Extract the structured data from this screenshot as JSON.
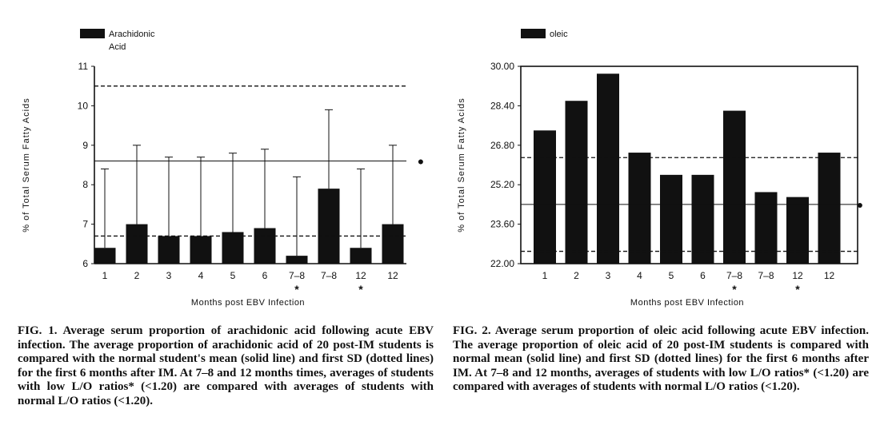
{
  "chart_data": [
    {
      "type": "bar",
      "legend_label_line1": "Arachidonic",
      "legend_label_line2": "Acid",
      "ylabel": "% of Total Serum Fatty Acids",
      "xlabel": "Months post EBV Infection",
      "ylim": [
        6,
        11
      ],
      "yticks": [
        "6",
        "7",
        "8",
        "9",
        "10",
        "11"
      ],
      "ytick_values": [
        6,
        7,
        8,
        9,
        10,
        11
      ],
      "categories": [
        "1",
        "2",
        "3",
        "4",
        "5",
        "6",
        "7–8",
        "7–8",
        "12",
        "12"
      ],
      "starred": [
        false,
        false,
        false,
        false,
        false,
        false,
        true,
        false,
        true,
        false
      ],
      "star_symbol": "*",
      "values": [
        6.4,
        7.0,
        6.7,
        6.7,
        6.8,
        6.9,
        6.2,
        7.9,
        6.4,
        7.0
      ],
      "error_upper": [
        8.4,
        9.0,
        8.7,
        8.7,
        8.8,
        8.9,
        8.2,
        9.9,
        8.4,
        9.0
      ],
      "mean_line": 8.6,
      "sd_lines": [
        6.7,
        10.5
      ],
      "marker": "●"
    },
    {
      "type": "bar",
      "legend_label_line1": "oleic",
      "legend_label_line2": "",
      "ylabel": "% of Total Serum Fatty Acids",
      "xlabel": "Months post EBV Infection",
      "ylim": [
        22.0,
        30.0
      ],
      "yticks": [
        "22.00",
        "23.60",
        "25.20",
        "26.80",
        "28.40",
        "30.00"
      ],
      "ytick_values": [
        22.0,
        23.6,
        25.2,
        26.8,
        28.4,
        30.0
      ],
      "categories": [
        "1",
        "2",
        "3",
        "4",
        "5",
        "6",
        "7–8",
        "7–8",
        "12",
        "12"
      ],
      "starred": [
        false,
        false,
        false,
        false,
        false,
        false,
        true,
        false,
        true,
        false
      ],
      "star_symbol": "*",
      "values": [
        27.4,
        28.6,
        29.7,
        26.5,
        25.6,
        25.6,
        28.2,
        24.9,
        24.7,
        26.5
      ],
      "mean_line": 24.4,
      "sd_lines": [
        22.5,
        26.3
      ],
      "marker": "●"
    }
  ],
  "captions": [
    {
      "label": "FIG. 1.",
      "text": "Average serum proportion of arachidonic acid following acute EBV infection. The average proportion of arachidonic acid of 20 post-IM students is compared with the normal student's mean (solid line) and first SD (dotted lines) for the first 6 months after IM. At 7–8 and 12 months times, averages of students with low L/O ratios* (<1.20) are compared with averages of students with normal L/O ratios (<1.20)."
    },
    {
      "label": "FIG. 2.",
      "text": "Average serum proportion of oleic acid following acute EBV infection. The average proportion of oleic acid of 20 post-IM students is compared with normal mean (solid line) and first SD (dotted lines) for the first 6 months after IM. At 7–8 and 12 months, averages of students with low L/O ratios* (<1.20) are compared with averages of students with normal L/O ratios (<1.20)."
    }
  ]
}
